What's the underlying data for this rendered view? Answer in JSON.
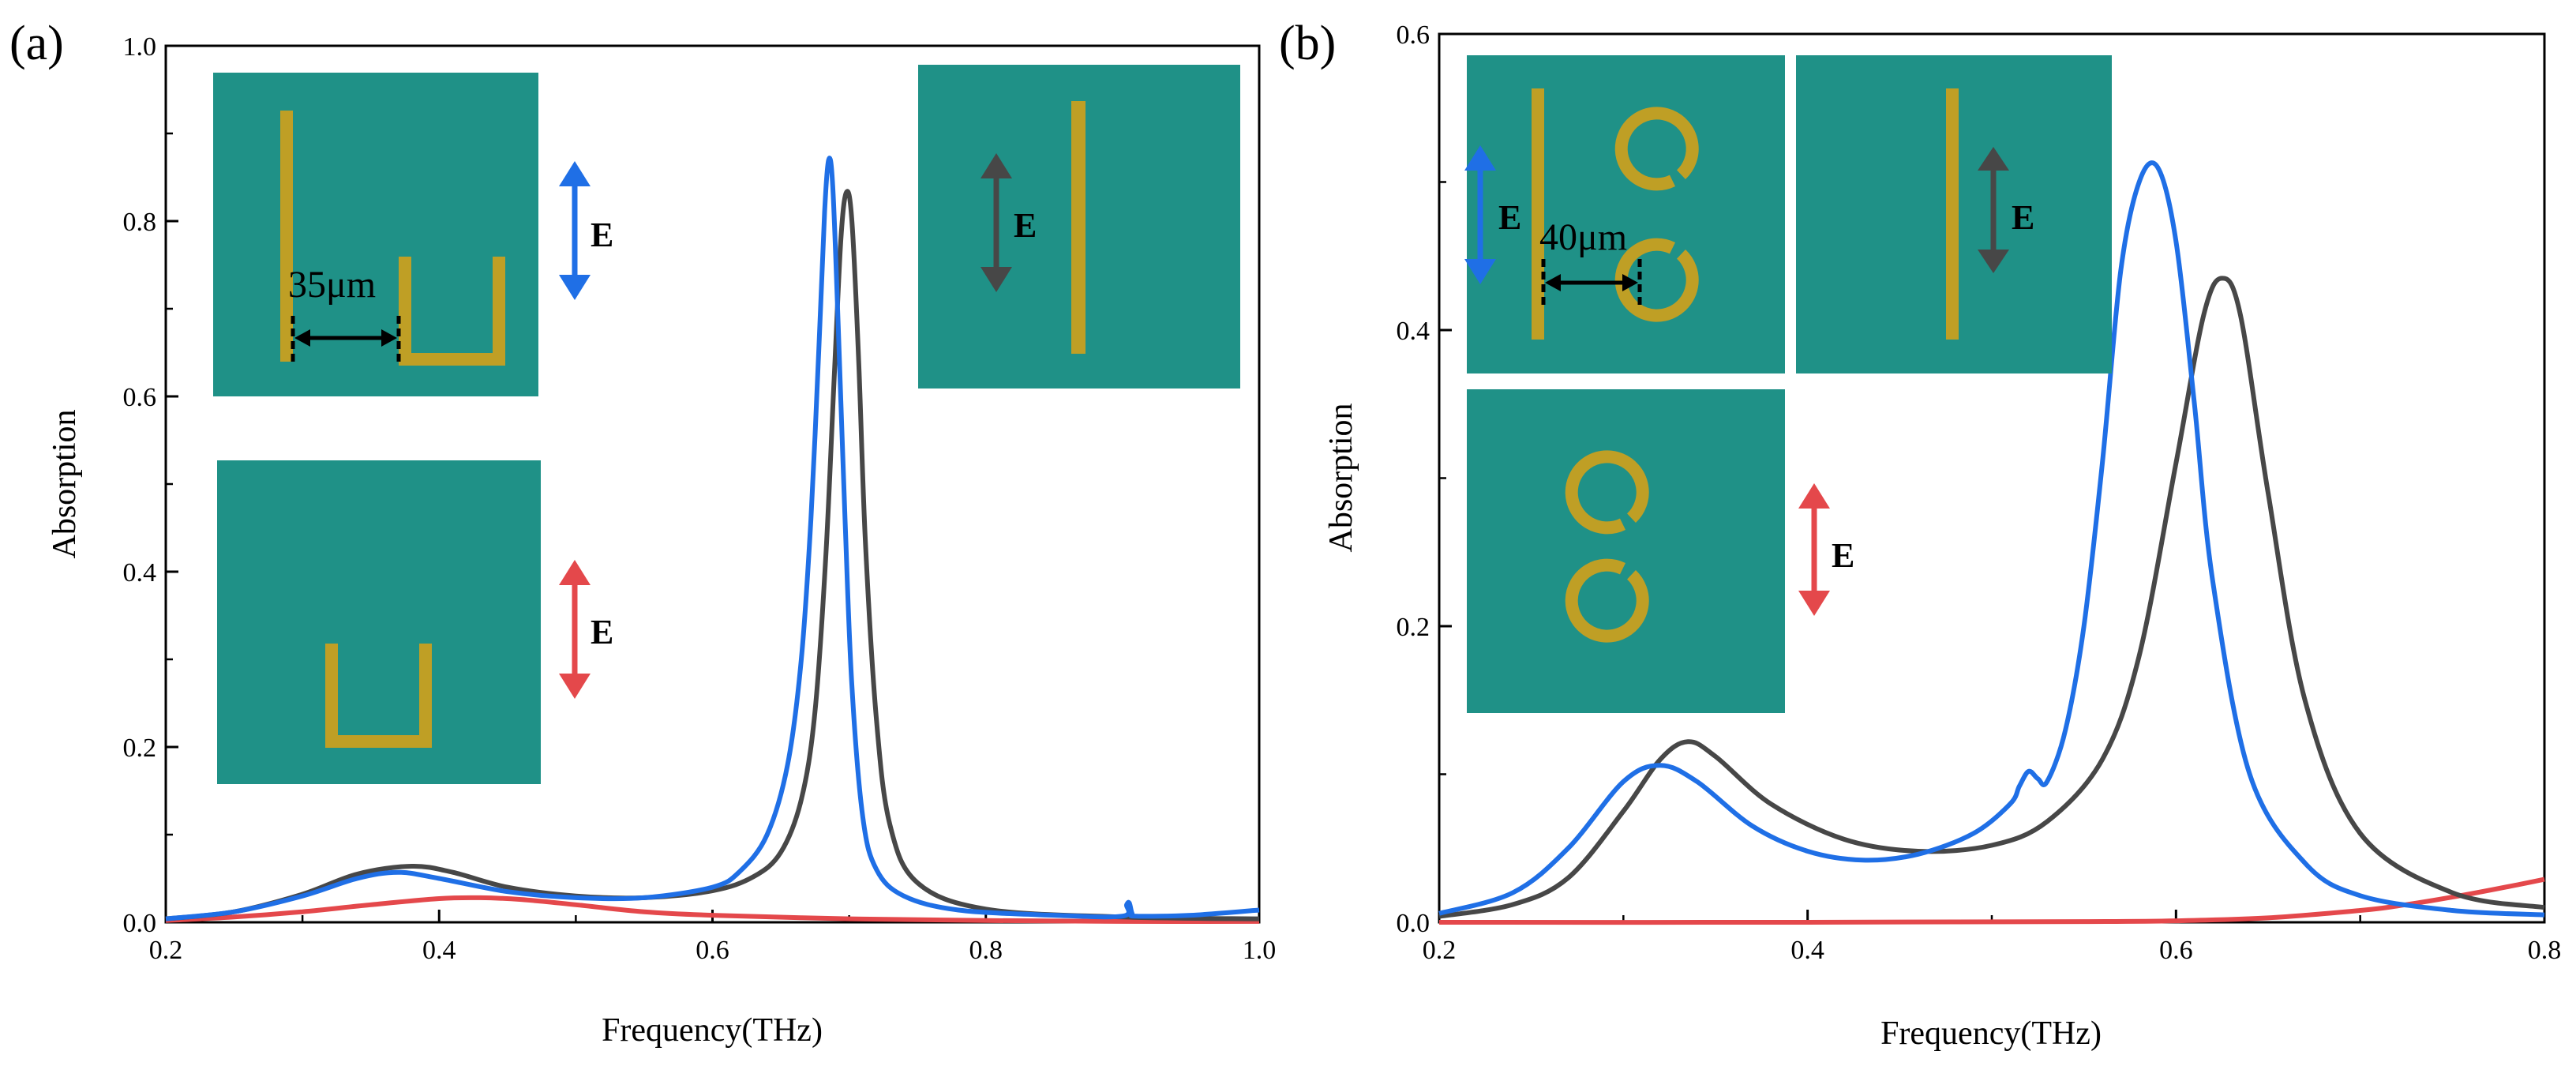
{
  "colors": {
    "blue": "#1f6fe6",
    "dark": "#474747",
    "red": "#e4484b",
    "teal": "#1f9187",
    "gold": "#bf9f25"
  },
  "panels": {
    "a": {
      "label": "(a)",
      "dim_text": "35μm",
      "e_labels": [
        "E",
        "E",
        "E"
      ]
    },
    "b": {
      "label": "(b)",
      "dim_text": "40μm",
      "e_labels": [
        "E",
        "E",
        "E"
      ]
    }
  },
  "chart_data": [
    {
      "type": "line",
      "panel": "(a)",
      "xlabel": "Frequency(THz)",
      "ylabel": "Absorption",
      "xlim": [
        0.2,
        1.0
      ],
      "ylim": [
        0.0,
        1.0
      ],
      "xticks": [
        "0.2",
        "0.4",
        "0.6",
        "0.8",
        "1.0"
      ],
      "yticks": [
        "0.0",
        "0.2",
        "0.4",
        "0.6",
        "0.8",
        "1.0"
      ],
      "series": [
        {
          "name": "blue",
          "color": "#1f6fe6",
          "x": [
            0.2,
            0.25,
            0.3,
            0.34,
            0.37,
            0.4,
            0.45,
            0.5,
            0.55,
            0.6,
            0.62,
            0.64,
            0.655,
            0.665,
            0.672,
            0.678,
            0.682,
            0.685,
            0.688,
            0.692,
            0.697,
            0.702,
            0.71,
            0.72,
            0.74,
            0.78,
            0.85,
            0.9,
            0.903,
            0.905,
            0.907,
            0.91,
            0.95,
            1.0
          ],
          "y": [
            0.004,
            0.012,
            0.03,
            0.05,
            0.057,
            0.05,
            0.035,
            0.028,
            0.028,
            0.04,
            0.058,
            0.1,
            0.18,
            0.3,
            0.46,
            0.66,
            0.81,
            0.87,
            0.84,
            0.68,
            0.46,
            0.27,
            0.12,
            0.06,
            0.03,
            0.014,
            0.008,
            0.007,
            0.02,
            0.022,
            0.01,
            0.007,
            0.008,
            0.014
          ]
        },
        {
          "name": "dark",
          "color": "#474747",
          "x": [
            0.2,
            0.25,
            0.3,
            0.34,
            0.38,
            0.41,
            0.45,
            0.5,
            0.55,
            0.6,
            0.63,
            0.65,
            0.665,
            0.675,
            0.683,
            0.689,
            0.694,
            0.698,
            0.702,
            0.707,
            0.712,
            0.72,
            0.73,
            0.75,
            0.8,
            0.9,
            1.0
          ],
          "y": [
            0.004,
            0.012,
            0.032,
            0.055,
            0.064,
            0.057,
            0.04,
            0.03,
            0.028,
            0.036,
            0.052,
            0.08,
            0.14,
            0.24,
            0.42,
            0.62,
            0.78,
            0.833,
            0.8,
            0.64,
            0.43,
            0.23,
            0.11,
            0.045,
            0.015,
            0.006,
            0.004
          ]
        },
        {
          "name": "red",
          "color": "#e4484b",
          "x": [
            0.2,
            0.25,
            0.3,
            0.35,
            0.4,
            0.43,
            0.46,
            0.5,
            0.55,
            0.6,
            0.7,
            0.8,
            0.9,
            1.0
          ],
          "y": [
            0.002,
            0.006,
            0.012,
            0.02,
            0.027,
            0.028,
            0.026,
            0.02,
            0.012,
            0.008,
            0.004,
            0.002,
            0.001,
            0.001
          ]
        }
      ]
    },
    {
      "type": "line",
      "panel": "(b)",
      "xlabel": "Frequency(THz)",
      "ylabel": "Absorption",
      "xlim": [
        0.2,
        0.8
      ],
      "ylim": [
        0.0,
        0.6
      ],
      "xticks": [
        "0.2",
        "0.4",
        "0.6",
        "0.8"
      ],
      "yticks": [
        "0.0",
        "0.2",
        "0.4",
        "0.6"
      ],
      "series": [
        {
          "name": "blue",
          "color": "#1f6fe6",
          "x": [
            0.2,
            0.24,
            0.27,
            0.3,
            0.32,
            0.34,
            0.37,
            0.4,
            0.43,
            0.46,
            0.49,
            0.51,
            0.515,
            0.52,
            0.525,
            0.53,
            0.54,
            0.55,
            0.56,
            0.57,
            0.58,
            0.59,
            0.6,
            0.61,
            0.62,
            0.64,
            0.67,
            0.7,
            0.75,
            0.8
          ],
          "y": [
            0.006,
            0.02,
            0.05,
            0.095,
            0.106,
            0.095,
            0.065,
            0.048,
            0.042,
            0.046,
            0.06,
            0.08,
            0.092,
            0.102,
            0.097,
            0.095,
            0.13,
            0.2,
            0.31,
            0.44,
            0.5,
            0.51,
            0.46,
            0.35,
            0.23,
            0.1,
            0.04,
            0.018,
            0.008,
            0.005
          ]
        },
        {
          "name": "dark",
          "color": "#474747",
          "x": [
            0.2,
            0.24,
            0.27,
            0.3,
            0.32,
            0.335,
            0.35,
            0.38,
            0.42,
            0.46,
            0.5,
            0.53,
            0.56,
            0.58,
            0.6,
            0.615,
            0.625,
            0.635,
            0.65,
            0.67,
            0.7,
            0.75,
            0.8
          ],
          "y": [
            0.004,
            0.012,
            0.03,
            0.075,
            0.11,
            0.122,
            0.112,
            0.08,
            0.056,
            0.048,
            0.052,
            0.068,
            0.11,
            0.18,
            0.31,
            0.41,
            0.435,
            0.41,
            0.29,
            0.15,
            0.06,
            0.02,
            0.01
          ]
        },
        {
          "name": "red",
          "color": "#e4484b",
          "x": [
            0.2,
            0.4,
            0.55,
            0.6,
            0.65,
            0.7,
            0.72,
            0.75,
            0.78,
            0.8
          ],
          "y": [
            0.0,
            0.0,
            0.0005,
            0.001,
            0.003,
            0.008,
            0.011,
            0.017,
            0.024,
            0.029
          ]
        }
      ]
    }
  ]
}
